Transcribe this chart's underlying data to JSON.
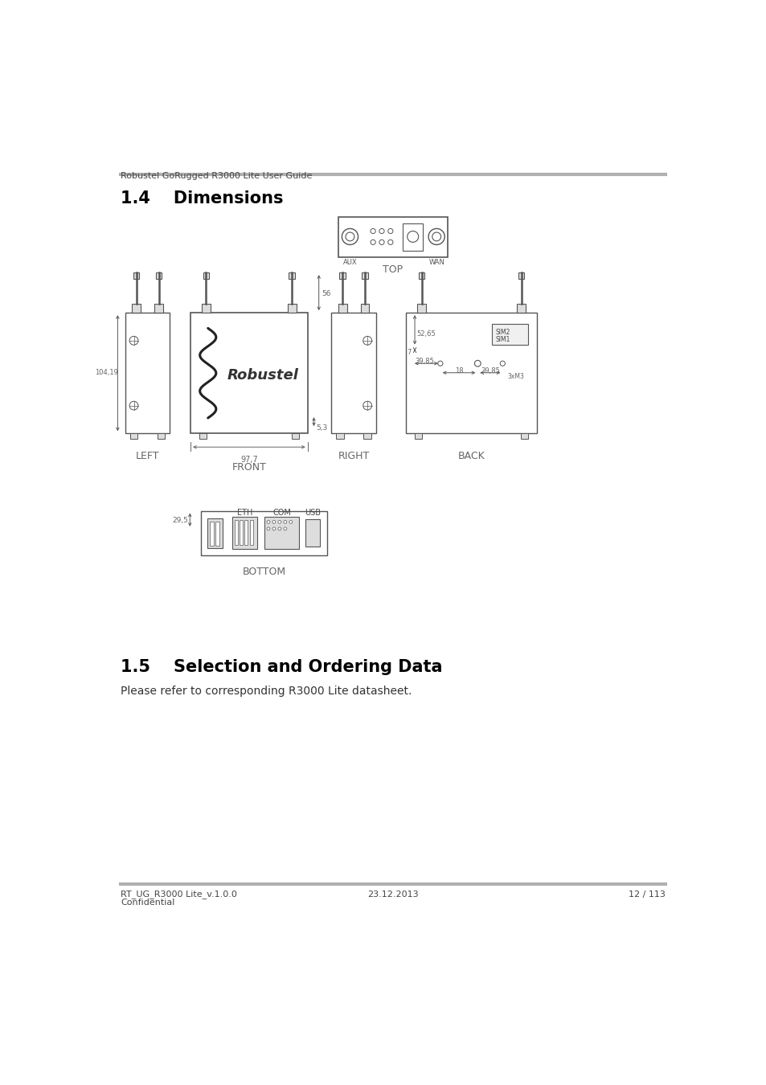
{
  "bg_color": "#ffffff",
  "header_text": "Robustel GoRugged R3000 Lite User Guide",
  "header_line_color": "#b0b0b0",
  "footer_line_color": "#b0b0b0",
  "footer_left": "RT_UG_R3000 Lite_v.1.0.0",
  "footer_left2": "Confidential",
  "footer_center": "23.12.2013",
  "footer_right": "12 / 113",
  "section_14_title": "1.4    Dimensions",
  "section_15_title": "1.5    Selection and Ordering Data",
  "section_15_body": "Please refer to corresponding R3000 Lite datasheet.",
  "edge_color": "#555555",
  "dim_color": "#666666",
  "text_color": "#000000",
  "light_gray": "#dddddd",
  "mid_gray": "#aaaaaa"
}
